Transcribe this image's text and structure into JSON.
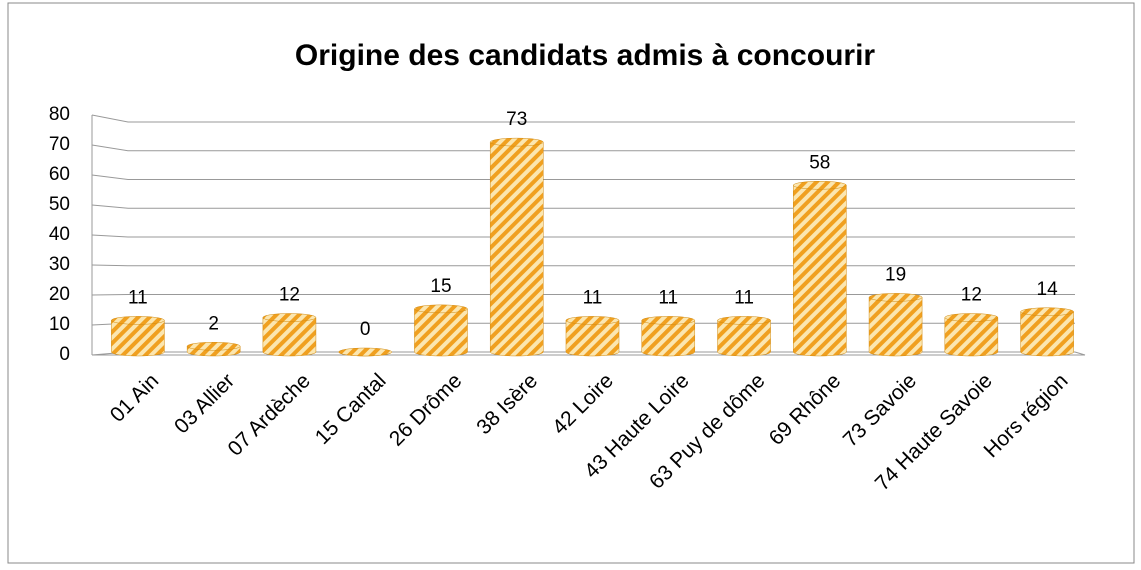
{
  "chart_data": {
    "type": "bar",
    "title": "Origine des candidats admis à concourir",
    "categories": [
      "01 Ain",
      "03 Allier",
      "07 Ardèche",
      "15 Cantal",
      "26 Drôme",
      "38 Isère",
      "42 Loire",
      "43 Haute Loire",
      "63 Puy de dôme",
      "69 Rhône",
      "73 Savoie",
      "74 Haute Savoie",
      "Hors région"
    ],
    "values": [
      11,
      2,
      12,
      0,
      15,
      73,
      11,
      11,
      11,
      58,
      19,
      12,
      14
    ],
    "color": "#f0a020",
    "ylim": [
      0,
      80
    ],
    "yticks": [
      0,
      10,
      20,
      30,
      40,
      50,
      60,
      70,
      80
    ],
    "grid": true
  }
}
